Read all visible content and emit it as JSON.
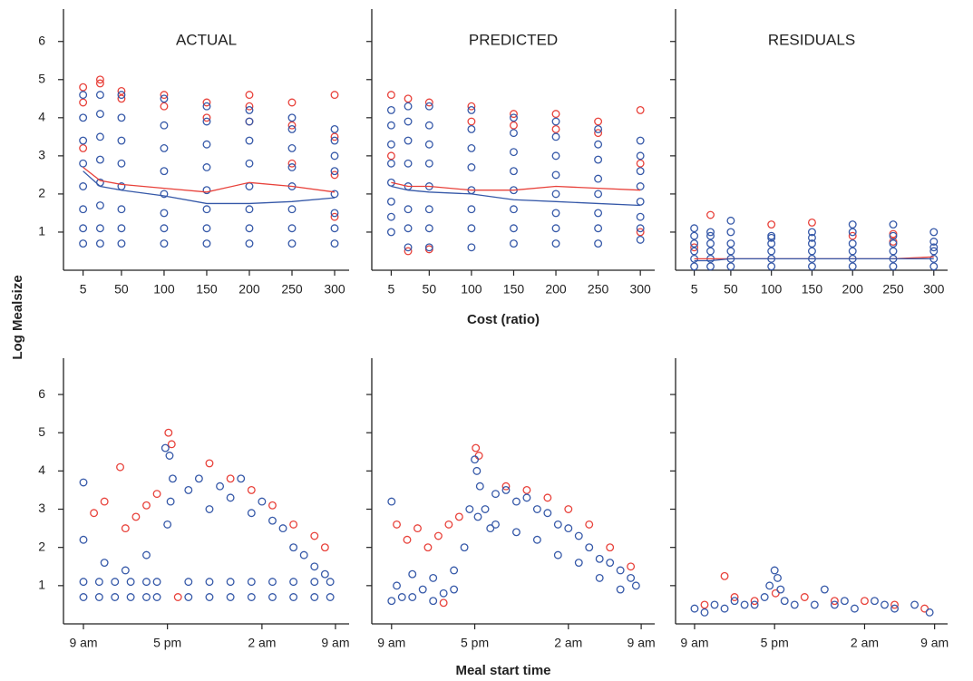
{
  "chart_data": [
    {
      "type": "scatter",
      "title": "ACTUAL",
      "ylabel": "Log Mealsize",
      "xlim": [
        -18,
        317
      ],
      "ylim": [
        0,
        6.85
      ],
      "xticks": [
        5,
        50,
        100,
        150,
        200,
        250,
        300
      ],
      "yticks": [
        1,
        2,
        3,
        4,
        5,
        6
      ],
      "series": [
        {
          "type": "scatter",
          "color": "#e8413a",
          "x": [
            5,
            5,
            5,
            25,
            25,
            50,
            50,
            100,
            100,
            150,
            150,
            200,
            200,
            200,
            250,
            250,
            250,
            300,
            300,
            300,
            300
          ],
          "values": [
            4.8,
            4.4,
            3.2,
            5.0,
            4.9,
            4.7,
            4.5,
            4.6,
            4.3,
            4.4,
            4.0,
            4.6,
            4.3,
            3.9,
            4.4,
            3.8,
            2.8,
            4.6,
            3.5,
            2.5,
            1.4
          ]
        },
        {
          "type": "scatter",
          "color": "#3558a8",
          "x": [
            5,
            5,
            5,
            5,
            5,
            5,
            5,
            5,
            25,
            25,
            25,
            25,
            25,
            25,
            25,
            25,
            50,
            50,
            50,
            50,
            50,
            50,
            50,
            50,
            100,
            100,
            100,
            100,
            100,
            100,
            100,
            100,
            150,
            150,
            150,
            150,
            150,
            150,
            150,
            150,
            200,
            200,
            200,
            200,
            200,
            200,
            200,
            200,
            250,
            250,
            250,
            250,
            250,
            250,
            250,
            250,
            300,
            300,
            300,
            300,
            300,
            300,
            300,
            300
          ],
          "values": [
            0.7,
            1.1,
            1.6,
            2.2,
            2.8,
            3.4,
            4.0,
            4.6,
            0.7,
            1.1,
            1.7,
            2.3,
            2.9,
            3.5,
            4.1,
            4.6,
            0.7,
            1.1,
            1.6,
            2.2,
            2.8,
            3.4,
            4.0,
            4.6,
            0.7,
            1.1,
            1.5,
            2.0,
            2.6,
            3.2,
            3.8,
            4.5,
            0.7,
            1.1,
            1.6,
            2.1,
            2.7,
            3.3,
            3.9,
            4.3,
            0.7,
            1.1,
            1.6,
            2.2,
            2.8,
            3.4,
            3.9,
            4.2,
            0.7,
            1.1,
            1.6,
            2.2,
            2.7,
            3.2,
            3.7,
            4.0,
            0.7,
            1.1,
            1.5,
            2.0,
            2.6,
            3.0,
            3.4,
            3.7
          ]
        },
        {
          "type": "line",
          "color": "#e8413a",
          "x": [
            5,
            25,
            50,
            100,
            150,
            200,
            250,
            300
          ],
          "values": [
            2.7,
            2.35,
            2.25,
            2.15,
            2.05,
            2.3,
            2.2,
            2.05
          ]
        },
        {
          "type": "line",
          "color": "#3558a8",
          "x": [
            5,
            25,
            50,
            100,
            150,
            200,
            250,
            300
          ],
          "values": [
            2.6,
            2.2,
            2.1,
            1.95,
            1.75,
            1.75,
            1.8,
            1.9
          ]
        }
      ]
    },
    {
      "type": "scatter",
      "title": "PREDICTED",
      "xlabel": "Cost (ratio)",
      "xlim": [
        -18,
        317
      ],
      "ylim": [
        0,
        6.85
      ],
      "xticks": [
        5,
        50,
        100,
        150,
        200,
        250,
        300
      ],
      "series": [
        {
          "type": "scatter",
          "color": "#e8413a",
          "x": [
            5,
            5,
            25,
            25,
            50,
            50,
            100,
            100,
            150,
            150,
            200,
            200,
            250,
            250,
            300,
            300,
            300
          ],
          "values": [
            4.6,
            3.0,
            4.5,
            0.5,
            4.4,
            0.55,
            4.3,
            3.9,
            4.1,
            3.8,
            4.1,
            3.7,
            3.9,
            3.6,
            4.2,
            2.8,
            1.0
          ]
        },
        {
          "type": "scatter",
          "color": "#3558a8",
          "x": [
            5,
            5,
            5,
            5,
            5,
            5,
            5,
            5,
            25,
            25,
            25,
            25,
            25,
            25,
            25,
            25,
            50,
            50,
            50,
            50,
            50,
            50,
            50,
            50,
            100,
            100,
            100,
            100,
            100,
            100,
            100,
            100,
            150,
            150,
            150,
            150,
            150,
            150,
            150,
            150,
            200,
            200,
            200,
            200,
            200,
            200,
            200,
            200,
            250,
            250,
            250,
            250,
            250,
            250,
            250,
            250,
            300,
            300,
            300,
            300,
            300,
            300,
            300,
            300
          ],
          "values": [
            1.0,
            1.4,
            1.8,
            2.3,
            2.8,
            3.3,
            3.8,
            4.2,
            0.6,
            1.1,
            1.6,
            2.2,
            2.8,
            3.4,
            3.9,
            4.3,
            0.6,
            1.1,
            1.6,
            2.2,
            2.8,
            3.3,
            3.8,
            4.3,
            0.6,
            1.1,
            1.6,
            2.1,
            2.7,
            3.2,
            3.7,
            4.2,
            0.7,
            1.1,
            1.6,
            2.1,
            2.6,
            3.1,
            3.6,
            4.0,
            0.7,
            1.1,
            1.5,
            2.0,
            2.5,
            3.0,
            3.5,
            3.9,
            0.7,
            1.1,
            1.5,
            2.0,
            2.4,
            2.9,
            3.3,
            3.7,
            0.8,
            1.1,
            1.4,
            1.8,
            2.2,
            2.6,
            3.0,
            3.4
          ]
        },
        {
          "type": "line",
          "color": "#e8413a",
          "x": [
            5,
            25,
            50,
            100,
            150,
            200,
            250,
            300
          ],
          "values": [
            2.3,
            2.2,
            2.2,
            2.1,
            2.1,
            2.2,
            2.15,
            2.1
          ]
        },
        {
          "type": "line",
          "color": "#3558a8",
          "x": [
            5,
            25,
            50,
            100,
            150,
            200,
            250,
            300
          ],
          "values": [
            2.2,
            2.1,
            2.05,
            2.0,
            1.85,
            1.8,
            1.75,
            1.7
          ]
        }
      ]
    },
    {
      "type": "scatter",
      "title": "RESIDUALS",
      "xlim": [
        -18,
        317
      ],
      "ylim": [
        0,
        6.85
      ],
      "xticks": [
        5,
        50,
        100,
        150,
        200,
        250,
        300
      ],
      "series": [
        {
          "type": "scatter",
          "color": "#e8413a",
          "x": [
            5,
            25,
            100,
            150,
            200,
            250,
            250
          ],
          "values": [
            0.6,
            1.45,
            1.2,
            1.25,
            0.9,
            0.95,
            0.75
          ]
        },
        {
          "type": "scatter",
          "color": "#3558a8",
          "x": [
            5,
            5,
            5,
            5,
            5,
            5,
            25,
            25,
            25,
            25,
            25,
            25,
            50,
            50,
            50,
            50,
            50,
            50,
            100,
            100,
            100,
            100,
            100,
            100,
            150,
            150,
            150,
            150,
            150,
            150,
            200,
            200,
            200,
            200,
            200,
            200,
            250,
            250,
            250,
            250,
            250,
            250,
            300,
            300,
            300,
            300,
            300,
            300
          ],
          "values": [
            0.1,
            0.3,
            0.5,
            0.7,
            0.9,
            1.1,
            0.1,
            0.3,
            0.5,
            0.7,
            0.9,
            1.0,
            0.1,
            0.3,
            0.5,
            0.7,
            1.0,
            1.3,
            0.1,
            0.3,
            0.5,
            0.7,
            0.85,
            0.9,
            0.1,
            0.3,
            0.5,
            0.7,
            0.85,
            1.0,
            0.1,
            0.3,
            0.5,
            0.7,
            1.0,
            1.2,
            0.1,
            0.3,
            0.5,
            0.7,
            0.9,
            1.2,
            0.1,
            0.3,
            0.5,
            0.6,
            0.75,
            1.0
          ]
        },
        {
          "type": "line",
          "color": "#e8413a",
          "x": [
            5,
            25,
            50,
            100,
            150,
            200,
            250,
            300
          ],
          "values": [
            0.3,
            0.3,
            0.3,
            0.3,
            0.3,
            0.3,
            0.3,
            0.35
          ]
        },
        {
          "type": "line",
          "color": "#3558a8",
          "x": [
            5,
            25,
            50,
            100,
            150,
            200,
            250,
            300
          ],
          "values": [
            0.25,
            0.25,
            0.3,
            0.3,
            0.3,
            0.3,
            0.3,
            0.3
          ]
        }
      ]
    },
    {
      "type": "scatter",
      "xlim": [
        -1.9,
        25.3
      ],
      "ylim": [
        0,
        6.95
      ],
      "xticks": [
        {
          "value": 0,
          "label": "9 am"
        },
        {
          "value": 8,
          "label": "5 pm"
        },
        {
          "value": 17,
          "label": "2 am"
        },
        {
          "value": 24,
          "label": "9 am"
        }
      ],
      "yticks": [
        1,
        2,
        3,
        4,
        5,
        6
      ],
      "series": [
        {
          "type": "scatter",
          "color": "#e8413a",
          "x": [
            1,
            2,
            3.5,
            4,
            5,
            6,
            7,
            8.1,
            8.4,
            12,
            14,
            16,
            18,
            20,
            22,
            23,
            9
          ],
          "values": [
            2.9,
            3.2,
            4.1,
            2.5,
            2.8,
            3.1,
            3.4,
            5.0,
            4.7,
            4.2,
            3.8,
            3.5,
            3.1,
            2.6,
            2.3,
            2.0,
            0.7
          ]
        },
        {
          "type": "scatter",
          "color": "#3558a8",
          "x": [
            0,
            1.5,
            3,
            4.5,
            6,
            7,
            10,
            12,
            14,
            16,
            18,
            20,
            22,
            23.5,
            0,
            1.5,
            3,
            4.5,
            6,
            7,
            10,
            12,
            14,
            16,
            18,
            20,
            22,
            23.5,
            0,
            0,
            2,
            4,
            6,
            7.8,
            8.2,
            8.5,
            8.3,
            8.0,
            10,
            11,
            12,
            13,
            14,
            15,
            16,
            17,
            18,
            19,
            20,
            21,
            22,
            23
          ],
          "values": [
            0.7,
            0.7,
            0.7,
            0.7,
            0.7,
            0.7,
            0.7,
            0.7,
            0.7,
            0.7,
            0.7,
            0.7,
            0.7,
            0.7,
            1.1,
            1.1,
            1.1,
            1.1,
            1.1,
            1.1,
            1.1,
            1.1,
            1.1,
            1.1,
            1.1,
            1.1,
            1.1,
            1.1,
            3.7,
            2.2,
            1.6,
            1.4,
            1.8,
            4.6,
            4.4,
            3.8,
            3.2,
            2.6,
            3.5,
            3.8,
            3.0,
            3.6,
            3.3,
            3.8,
            2.9,
            3.2,
            2.7,
            2.5,
            2.0,
            1.8,
            1.5,
            1.3
          ]
        }
      ]
    },
    {
      "type": "scatter",
      "xlabel": "Meal start time",
      "xlim": [
        -1.9,
        25.3
      ],
      "ylim": [
        0,
        6.95
      ],
      "xticks": [
        {
          "value": 0,
          "label": "9 am"
        },
        {
          "value": 8,
          "label": "5 pm"
        },
        {
          "value": 17,
          "label": "2 am"
        },
        {
          "value": 24,
          "label": "9 am"
        }
      ],
      "series": [
        {
          "type": "scatter",
          "color": "#e8413a",
          "x": [
            0.5,
            1.5,
            2.5,
            3.5,
            4.5,
            5.5,
            6.5,
            8.1,
            8.4,
            11,
            13,
            15,
            17,
            19,
            21,
            23,
            5
          ],
          "values": [
            2.6,
            2.2,
            2.5,
            2.0,
            2.3,
            2.6,
            2.8,
            4.6,
            4.4,
            3.6,
            3.5,
            3.3,
            3.0,
            2.6,
            2.0,
            1.5,
            0.55
          ]
        },
        {
          "type": "scatter",
          "color": "#3558a8",
          "x": [
            0,
            0.5,
            1,
            2,
            3,
            4,
            5,
            6,
            7,
            7.5,
            8,
            8.2,
            8.5,
            9,
            9.5,
            10,
            11,
            12,
            13,
            14,
            15,
            16,
            17,
            18,
            19,
            20,
            21,
            22,
            23,
            23.5,
            0,
            2,
            4,
            6,
            8.3,
            10,
            12,
            14,
            16,
            18,
            20,
            22
          ],
          "values": [
            3.2,
            1.0,
            0.7,
            1.3,
            0.9,
            1.2,
            0.8,
            1.4,
            2.0,
            3.0,
            4.3,
            4.0,
            3.6,
            3.0,
            2.5,
            3.4,
            3.5,
            3.2,
            3.3,
            3.0,
            2.9,
            2.6,
            2.5,
            2.3,
            2.0,
            1.7,
            1.6,
            1.4,
            1.2,
            1.0,
            0.6,
            0.7,
            0.6,
            0.9,
            2.8,
            2.6,
            2.4,
            2.2,
            1.8,
            1.6,
            1.2,
            0.9
          ]
        }
      ]
    },
    {
      "type": "scatter",
      "xlim": [
        -1.9,
        25.3
      ],
      "ylim": [
        0,
        6.95
      ],
      "xticks": [
        {
          "value": 0,
          "label": "9 am"
        },
        {
          "value": 8,
          "label": "5 pm"
        },
        {
          "value": 17,
          "label": "2 am"
        },
        {
          "value": 24,
          "label": "9 am"
        }
      ],
      "series": [
        {
          "type": "scatter",
          "color": "#e8413a",
          "x": [
            1,
            3,
            4,
            6,
            8.1,
            11,
            14,
            17,
            20,
            23
          ],
          "values": [
            0.5,
            1.25,
            0.7,
            0.6,
            0.8,
            0.7,
            0.6,
            0.6,
            0.5,
            0.4
          ]
        },
        {
          "type": "scatter",
          "color": "#3558a8",
          "x": [
            0,
            1,
            2,
            3,
            4,
            5,
            6,
            7,
            7.5,
            8,
            8.3,
            8.6,
            9,
            10,
            12,
            13,
            14,
            15,
            16,
            18,
            19,
            20,
            22,
            23.5
          ],
          "values": [
            0.4,
            0.3,
            0.5,
            0.4,
            0.6,
            0.5,
            0.5,
            0.7,
            1.0,
            1.4,
            1.2,
            0.9,
            0.6,
            0.5,
            0.5,
            0.9,
            0.5,
            0.6,
            0.4,
            0.6,
            0.5,
            0.4,
            0.5,
            0.3
          ]
        }
      ]
    }
  ]
}
